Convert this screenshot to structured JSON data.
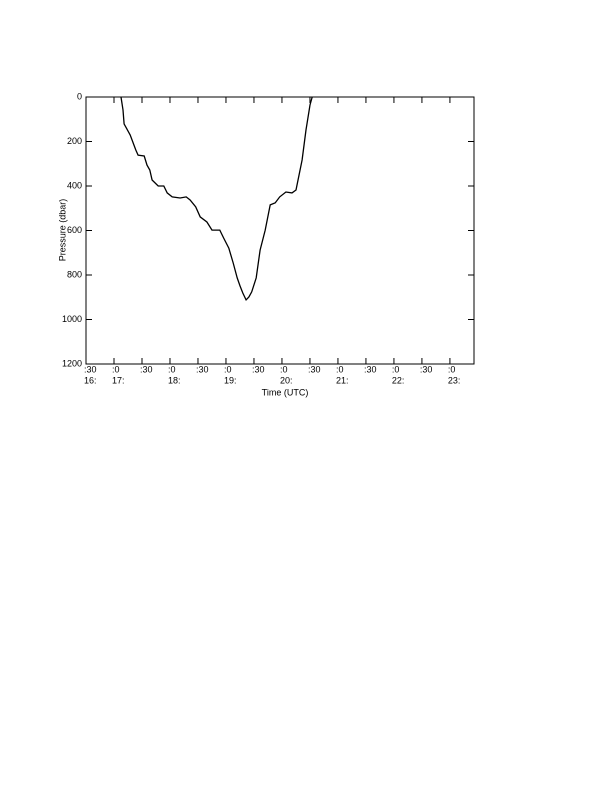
{
  "chart_data": {
    "type": "line",
    "x_label": "Time (UTC)",
    "y_label": "Pressure (dbar)",
    "xlim": [
      16.5,
      23.43
    ],
    "ylim": [
      1200,
      0
    ],
    "xticks": [
      {
        "value": 16.5,
        "label": ":30"
      },
      {
        "value": 17,
        "label": ":0"
      },
      {
        "value": 17.5,
        "label": ":30"
      },
      {
        "value": 18,
        "label": ":0"
      },
      {
        "value": 18.5,
        "label": ":30"
      },
      {
        "value": 19,
        "label": ":0"
      },
      {
        "value": 19.5,
        "label": ":30"
      },
      {
        "value": 20,
        "label": ":0"
      },
      {
        "value": 20.5,
        "label": ":30"
      },
      {
        "value": 21,
        "label": ":0"
      },
      {
        "value": 21.5,
        "label": ":30"
      },
      {
        "value": 22,
        "label": ":0"
      },
      {
        "value": 22.5,
        "label": ":30"
      },
      {
        "value": 23,
        "label": ":0"
      }
    ],
    "xtick_hours": [
      {
        "value": 16.5,
        "label": "16:"
      },
      {
        "value": 17,
        "label": "17:"
      },
      {
        "value": 18,
        "label": "18:"
      },
      {
        "value": 19,
        "label": "19:"
      },
      {
        "value": 20,
        "label": "20:"
      },
      {
        "value": 21,
        "label": "21:"
      },
      {
        "value": 22,
        "label": "22:"
      },
      {
        "value": 23,
        "label": "23:"
      }
    ],
    "yticks": [
      0,
      200,
      400,
      600,
      800,
      1000,
      1200
    ],
    "series": [
      {
        "color": "#000000",
        "x": [
          17.125,
          17.16,
          17.18,
          17.29,
          17.39,
          17.43,
          17.54,
          17.59,
          17.64,
          17.68,
          17.79,
          17.89,
          17.95,
          18.04,
          18.18,
          18.29,
          18.36,
          18.46,
          18.54,
          18.66,
          18.75,
          18.89,
          18.96,
          19.05,
          19.13,
          19.2,
          19.25,
          19.3,
          19.36,
          19.41,
          19.46,
          19.54,
          19.61,
          19.7,
          19.79,
          19.88,
          19.96,
          20.07,
          20.18,
          20.25,
          20.36,
          20.43,
          20.5,
          20.54
        ],
        "values": [
          0,
          58,
          121,
          171,
          238,
          261,
          265,
          306,
          328,
          373,
          400,
          400,
          431,
          449,
          454,
          449,
          463,
          494,
          539,
          562,
          598,
          598,
          634,
          679,
          746,
          813,
          849,
          881,
          912,
          899,
          876,
          813,
          688,
          598,
          485,
          476,
          449,
          427,
          431,
          418,
          283,
          148,
          36,
          0
        ]
      }
    ]
  }
}
